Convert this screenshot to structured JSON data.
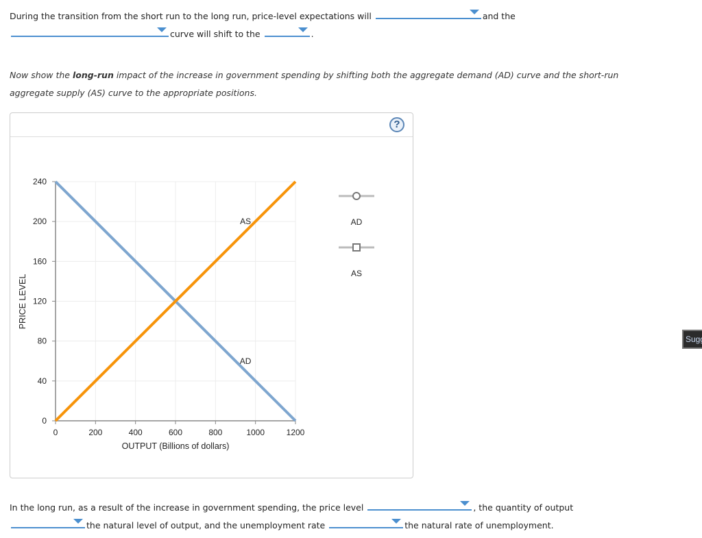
{
  "q1": {
    "text_a": "During the transition from the short run to the long run, price-level expectations will",
    "text_b": "and the",
    "text_c": "curve will shift to the",
    "text_d": ".",
    "dropdowns": [
      {
        "name": "expectations-dropdown",
        "value": ""
      },
      {
        "name": "curve-dropdown",
        "value": ""
      },
      {
        "name": "direction-dropdown",
        "value": ""
      }
    ]
  },
  "instructions": {
    "part1": "Now show the ",
    "bold": "long-run",
    "part2": " impact of the increase in government spending by shifting both the aggregate demand (AD) curve and the short-run",
    "line2": "aggregate supply (AS) curve to the appropriate positions."
  },
  "help_button": {
    "label": "?"
  },
  "chart_data": {
    "type": "line",
    "title": "",
    "xlabel": "OUTPUT (Billions of dollars)",
    "ylabel": "PRICE LEVEL",
    "xlim": [
      0,
      1200
    ],
    "ylim": [
      0,
      240
    ],
    "x_ticks": [
      0,
      200,
      400,
      600,
      800,
      1000,
      1200
    ],
    "y_ticks": [
      0,
      40,
      80,
      120,
      160,
      200,
      240
    ],
    "grid": true,
    "series": [
      {
        "name": "AD",
        "color": "#7ea6cf",
        "points": [
          [
            0,
            240
          ],
          [
            1200,
            0
          ]
        ],
        "label_pos": [
          950,
          60
        ]
      },
      {
        "name": "AS",
        "color": "#f7940a",
        "points": [
          [
            0,
            0
          ],
          [
            1200,
            240
          ]
        ],
        "label_pos": [
          950,
          200
        ]
      }
    ],
    "legend": [
      {
        "name": "AD",
        "marker": "circle"
      },
      {
        "name": "AS",
        "marker": "square"
      }
    ],
    "legend_position": "right"
  },
  "q2": {
    "text_a": "In the long run, as a result of the increase in government spending, the price level",
    "text_b": ", the quantity of output",
    "text_c": "the natural level of output, and the unemployment rate",
    "text_d": "the natural rate of unemployment.",
    "dropdowns": [
      {
        "name": "price-level-dropdown",
        "value": ""
      },
      {
        "name": "output-dropdown",
        "value": ""
      },
      {
        "name": "unemployment-dropdown",
        "value": ""
      }
    ]
  },
  "side_button": {
    "label": "Sugg"
  }
}
